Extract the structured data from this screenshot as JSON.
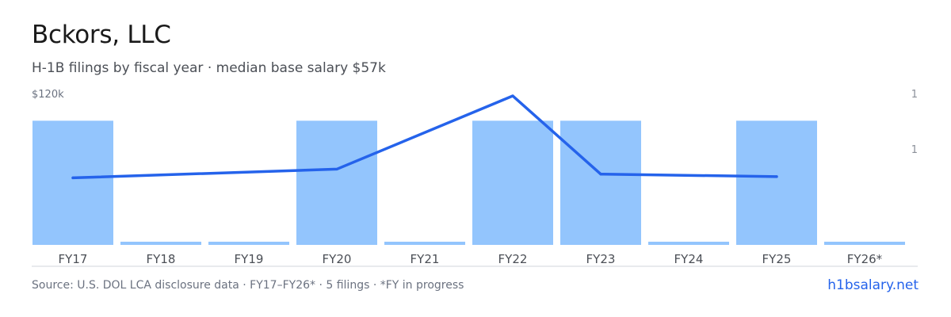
{
  "header": {
    "title": "Bckors, LLC",
    "subtitle": "H-1B filings by fiscal year · median base salary $57k"
  },
  "axes": {
    "left_top_label": "$120k",
    "right_top_label": "1",
    "right_mid_label": "1"
  },
  "footer": {
    "source": "Source: U.S. DOL LCA disclosure data · FY17–FY26* · 5 filings · *FY in progress",
    "link": "h1bsalary.net"
  },
  "colors": {
    "bar": "#93c5fd",
    "line": "#2563eb",
    "axis": "#d1d5db"
  },
  "chart_data": {
    "type": "bar",
    "categories": [
      "FY17",
      "FY18",
      "FY19",
      "FY20",
      "FY21",
      "FY22",
      "FY23",
      "FY24",
      "FY25",
      "FY26*"
    ],
    "series": [
      {
        "type": "bar",
        "values": [
          1,
          0,
          0,
          1,
          0,
          1,
          1,
          0,
          1,
          0
        ]
      },
      {
        "type": "line",
        "values": [
          54000,
          null,
          null,
          61000,
          null,
          120000,
          57000,
          null,
          55000,
          null
        ]
      }
    ],
    "ylim_left": [
      0,
      120000
    ],
    "ylim_right": [
      0,
      1.2
    ],
    "grid": false,
    "legend": "none"
  }
}
